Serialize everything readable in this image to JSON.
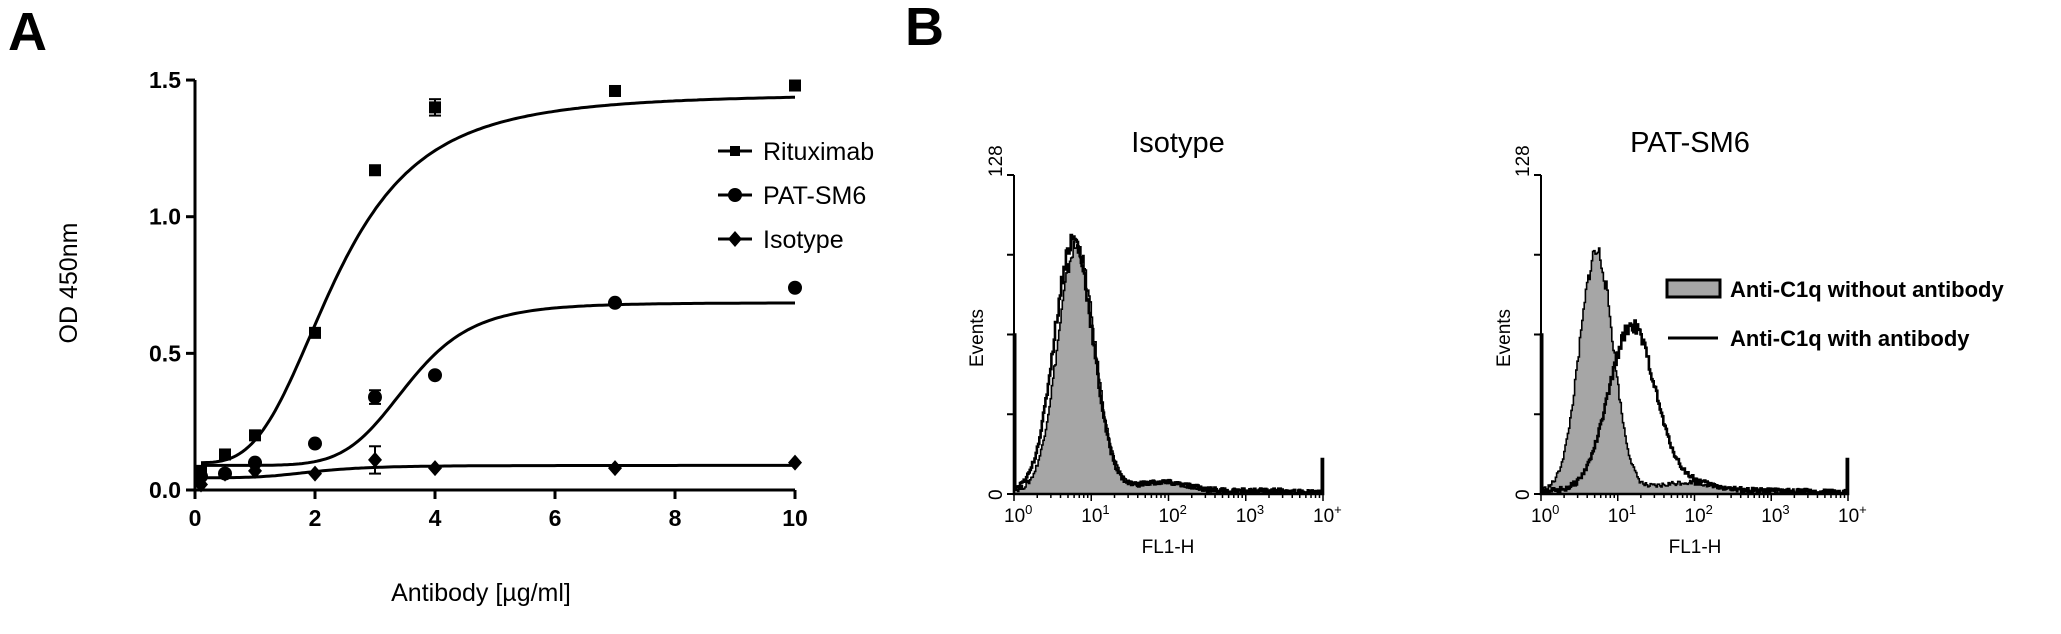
{
  "figure": {
    "panel_a_label": "A",
    "panel_b_label": "B"
  },
  "chart_data": [
    {
      "id": "panel-a",
      "type": "scatter",
      "title": "",
      "xlabel": "Antibody [µg/ml]",
      "ylabel": "OD 450nm",
      "xlim": [
        0,
        10
      ],
      "ylim": [
        0,
        1.5
      ],
      "xticks": [
        0,
        2,
        4,
        6,
        8,
        10
      ],
      "xtick_labels": [
        "0",
        "2",
        "4",
        "6",
        "8",
        "10"
      ],
      "yticks": [
        0.0,
        0.5,
        1.0,
        1.5
      ],
      "ytick_labels": [
        "0.0",
        "0.5",
        "1.0",
        "1.5"
      ],
      "grid": false,
      "legend_position": "upper right",
      "fit": "sigmoidal dose-response curve per series",
      "x": [
        0.1,
        0.5,
        1,
        2,
        3,
        4,
        7,
        10
      ],
      "series": [
        {
          "name": "Rituximab",
          "marker": "square",
          "values": [
            0.07,
            0.13,
            0.2,
            0.575,
            1.17,
            1.4,
            1.46,
            1.48
          ],
          "errors": [
            0.01,
            0.01,
            0.01,
            0.02,
            0.02,
            0.03,
            0.01,
            0.01
          ],
          "fit": {
            "bottom": 0.1,
            "top": 1.45,
            "ec50": 2.35,
            "hill": 3.2
          }
        },
        {
          "name": "PAT-SM6",
          "marker": "circle",
          "values": [
            0.05,
            0.06,
            0.1,
            0.17,
            0.34,
            0.42,
            0.685,
            0.74
          ],
          "errors": [
            0.005,
            0.005,
            0.01,
            0.01,
            0.025,
            0.01,
            0.01,
            0.01
          ],
          "fit": {
            "bottom": 0.09,
            "top": 0.685,
            "ec50": 3.55,
            "hill": 6.5
          }
        },
        {
          "name": "Isotype",
          "marker": "diamond",
          "values": [
            0.02,
            0.06,
            0.07,
            0.06,
            0.11,
            0.08,
            0.08,
            0.1
          ],
          "errors": [
            0.005,
            0.005,
            0.01,
            0.01,
            0.05,
            0.01,
            0.01,
            0.01
          ],
          "fit": {
            "bottom": 0.045,
            "top": 0.09,
            "ec50": 2.0,
            "hill": 4
          }
        }
      ]
    },
    {
      "id": "panel-b-isotype",
      "type": "area",
      "title": "Isotype",
      "xlabel": "FL1-H",
      "ylabel": "Events",
      "xscale": "log",
      "xlim": [
        1,
        10000
      ],
      "xtick_labels": [
        "10^0",
        "10^1",
        "10^2",
        "10^3",
        "10^4"
      ],
      "ylim": [
        0,
        128
      ],
      "ytick_labels": [
        "0",
        "128"
      ],
      "grid": false,
      "series": [
        {
          "name": "Anti-C1q without antibody",
          "style": "filled-gray",
          "peak_x": 6.3,
          "peak_events": 98,
          "log_sigma": 0.24
        },
        {
          "name": "Anti-C1q with antibody",
          "style": "black-outline",
          "peak_x": 5.8,
          "peak_events": 101,
          "log_sigma": 0.25
        }
      ]
    },
    {
      "id": "panel-b-patsm6",
      "type": "area",
      "title": "PAT-SM6",
      "xlabel": "FL1-H",
      "ylabel": "Events",
      "xscale": "log",
      "xlim": [
        1,
        10000
      ],
      "xtick_labels": [
        "10^0",
        "10^1",
        "10^2",
        "10^3",
        "10^4"
      ],
      "ylim": [
        0,
        128
      ],
      "ytick_labels": [
        "0",
        "128"
      ],
      "grid": false,
      "legend_position": "right",
      "legend": [
        {
          "label": "Anti-C1q without antibody",
          "swatch": "filled-gray"
        },
        {
          "label": "Anti-C1q with antibody",
          "swatch": "black-line"
        }
      ],
      "series": [
        {
          "name": "Anti-C1q without antibody",
          "style": "filled-gray",
          "peak_x": 5.2,
          "peak_events": 96,
          "log_sigma": 0.22
        },
        {
          "name": "Anti-C1q with antibody",
          "style": "black-outline",
          "peak_x": 15,
          "peak_events": 66,
          "log_sigma": 0.3
        }
      ]
    }
  ],
  "colors": {
    "ink": "#000000",
    "histogram_fill": "#a6a6a6",
    "background": "#ffffff"
  }
}
